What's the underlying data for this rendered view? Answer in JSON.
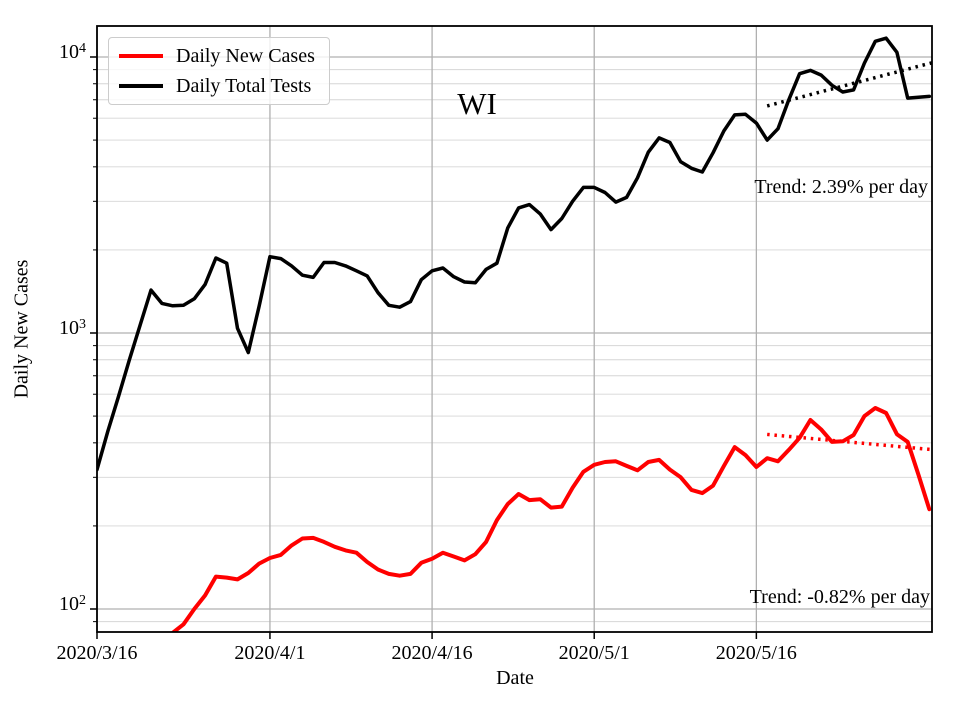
{
  "figure": {
    "state_label": "WI",
    "xlabel": "Date",
    "ylabel": "Daily New Cases",
    "annotations": {
      "tests_trend": "Trend: 2.39% per day",
      "cases_trend": "Trend: -0.82% per day"
    },
    "legend": {
      "items": [
        {
          "label": "Daily New Cases",
          "color": "#ff0000"
        },
        {
          "label": "Daily Total Tests",
          "color": "#000000"
        }
      ]
    }
  },
  "colors": {
    "cases_line": "#ff0000",
    "tests_line": "#000000",
    "grid_major": "#b0b0b0",
    "grid_minor": "#d6d6d6",
    "frame": "#000000"
  },
  "chart_data": {
    "type": "line",
    "title": "WI",
    "xlabel": "Date",
    "ylabel": "Daily New Cases",
    "y_scale": "log",
    "ylim": [
      82,
      12900
    ],
    "grid": true,
    "legend_position": "upper left",
    "x_start_date": "2020/3/16",
    "x_range_days": [
      0,
      77.25
    ],
    "x_tick_days": [
      0,
      16,
      31,
      46,
      61
    ],
    "x_tick_labels": [
      "2020/3/16",
      "2020/4/1",
      "2020/4/16",
      "2020/5/1",
      "2020/5/16"
    ],
    "y_major_ticks": [
      100,
      1000,
      10000
    ],
    "y_tick_labels": [
      {
        "base": "10",
        "exponent": "2"
      },
      {
        "base": "10",
        "exponent": "3"
      },
      {
        "base": "10",
        "exponent": "4"
      }
    ],
    "y_minor_ticks": [
      90,
      200,
      300,
      400,
      500,
      600,
      700,
      800,
      900,
      2000,
      3000,
      4000,
      5000,
      6000,
      7000,
      8000,
      9000
    ],
    "series": [
      {
        "name": "Daily Total Tests",
        "color": "#000000",
        "start_day": 0,
        "values": [
          320,
          440,
          590,
          800,
          1070,
          1430,
          1280,
          1255,
          1260,
          1330,
          1500,
          1870,
          1790,
          1040,
          850,
          1250,
          1890,
          1860,
          1750,
          1620,
          1590,
          1800,
          1800,
          1750,
          1680,
          1610,
          1400,
          1260,
          1240,
          1300,
          1560,
          1680,
          1720,
          1600,
          1530,
          1520,
          1700,
          1790,
          2400,
          2840,
          2920,
          2700,
          2370,
          2600,
          3000,
          3370,
          3370,
          3230,
          2980,
          3100,
          3650,
          4520,
          5090,
          4900,
          4170,
          3950,
          3830,
          4500,
          5400,
          6170,
          6200,
          5760,
          5000,
          5500,
          7000,
          8700,
          8940,
          8600,
          7900,
          7470,
          7600,
          9500,
          11400,
          11700,
          10400,
          7100,
          7150,
          7200
        ]
      },
      {
        "name": "Daily New Cases",
        "color": "#ff0000",
        "start_day": 7,
        "values": [
          82,
          88,
          100,
          112,
          131,
          130,
          128,
          135,
          146,
          153,
          157,
          170,
          180,
          181,
          175,
          168,
          163,
          160,
          148,
          139,
          134,
          132,
          134,
          147,
          152,
          160,
          155,
          150,
          158,
          175,
          210,
          240,
          261,
          248,
          250,
          233,
          235,
          275,
          314,
          333,
          341,
          343,
          330,
          318,
          341,
          347,
          320,
          300,
          270,
          263,
          280,
          330,
          386,
          361,
          327,
          352,
          343,
          377,
          417,
          484,
          447,
          403,
          405,
          427,
          500,
          535,
          513,
          430,
          403,
          306,
          230
        ]
      }
    ],
    "trend_lines": [
      {
        "name": "tests-trend",
        "color": "#000000",
        "rate_label": "Trend: 2.39% per day",
        "day_start": 62,
        "day_end": 77.25,
        "value_start": 6650,
        "value_end": 9530
      },
      {
        "name": "cases-trend",
        "color": "#ff0000",
        "rate_label": "Trend: -0.82% per day",
        "day_start": 62,
        "day_end": 77.25,
        "value_start": 429,
        "value_end": 378
      }
    ]
  }
}
